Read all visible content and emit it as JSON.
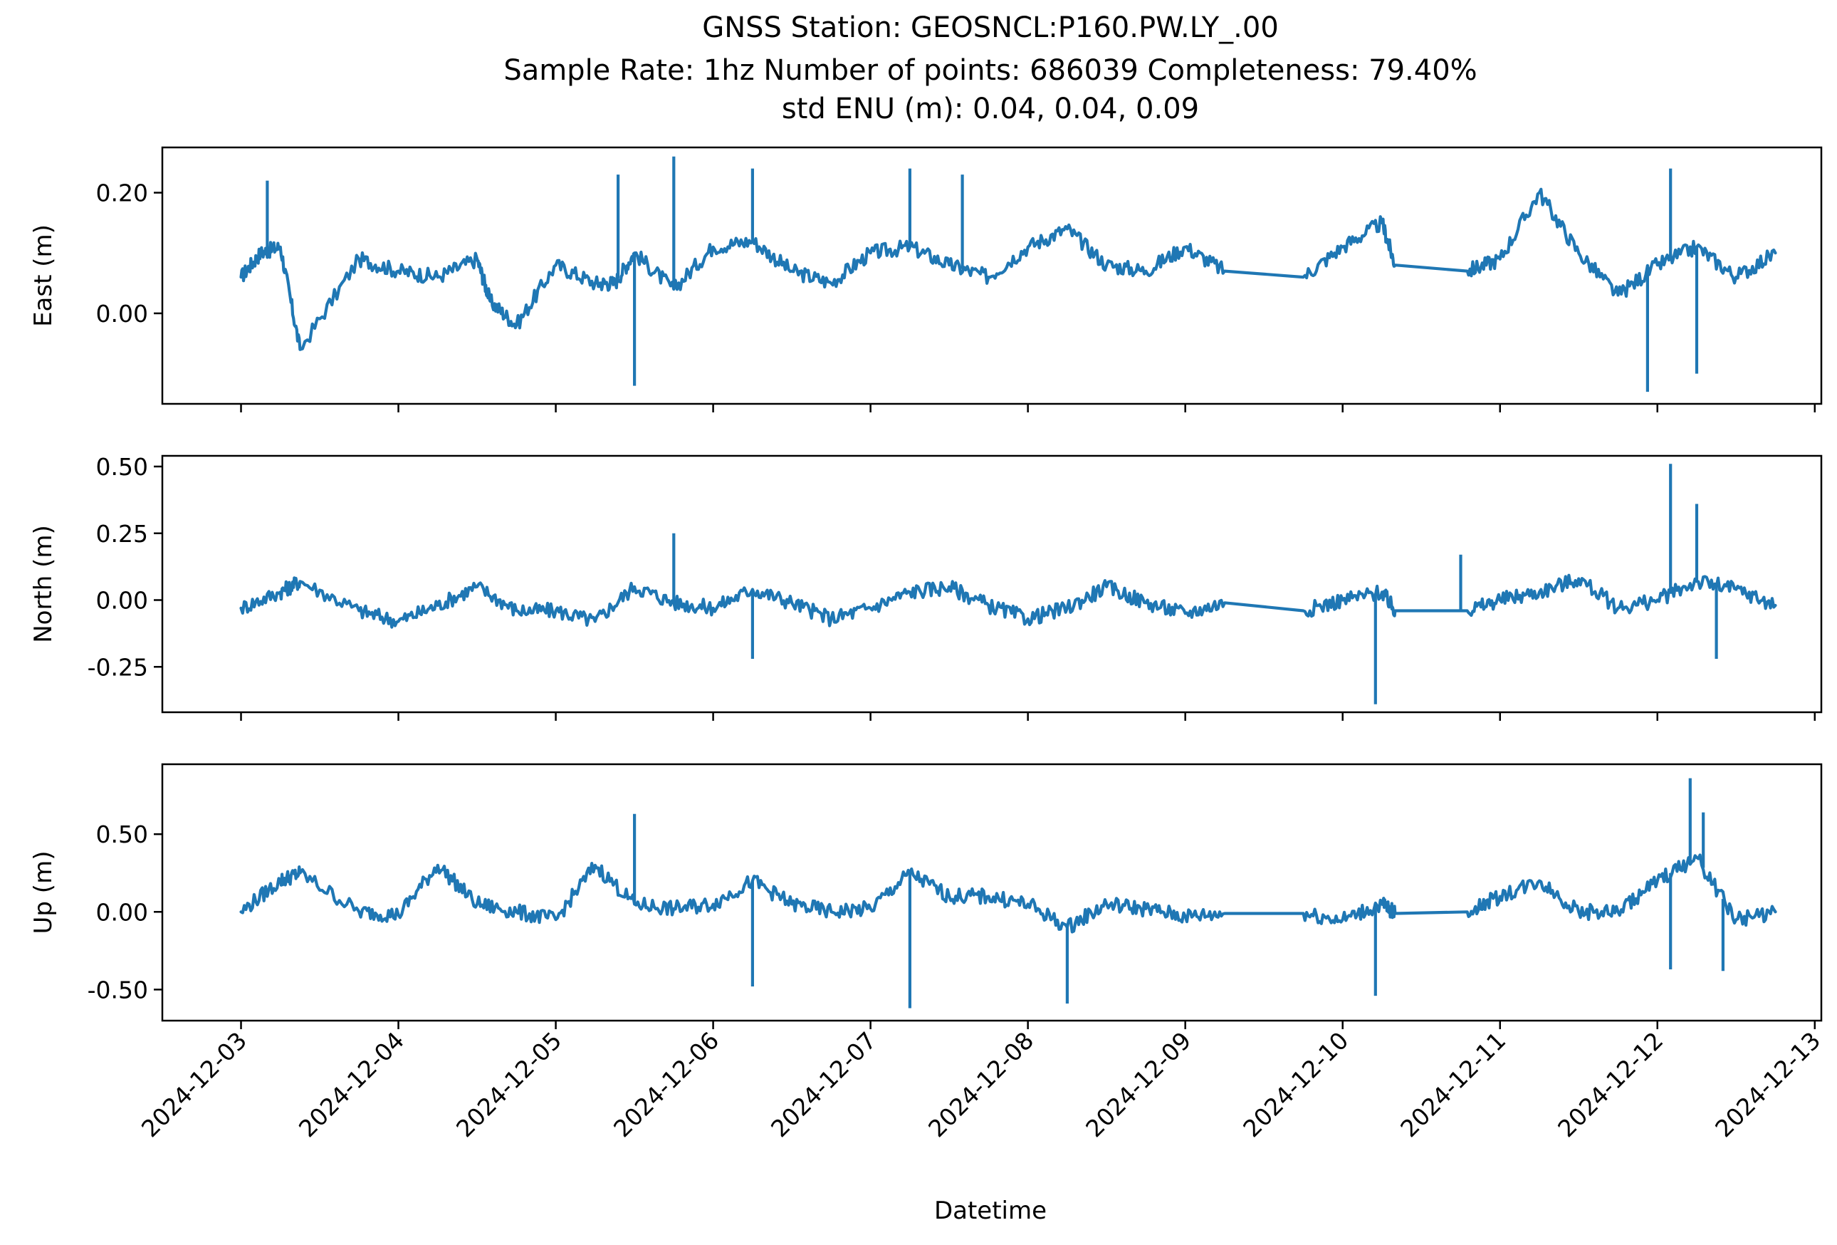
{
  "figure": {
    "title_lines": [
      "GNSS Station: GEOSNCL:P160.PW.LY_.00",
      "Sample Rate: 1hz   Number of points: 686039    Completeness:  79.40%",
      "std ENU (m):  0.04, 0.04, 0.09"
    ],
    "xlabel": "Datetime",
    "series_color": "#1f77b4"
  },
  "chart_data": [
    {
      "type": "line",
      "ylabel": "East (m)",
      "xlim": [
        "2024-12-02T12:00",
        "2024-12-13T01:00"
      ],
      "ylim": [
        -0.15,
        0.275
      ],
      "yticks": [
        0.0,
        0.2
      ],
      "ytick_labels": [
        "0.00",
        "0.20"
      ],
      "xtick_labels_shown": false,
      "x": [
        "2024-12-03T00:00",
        "2024-12-03T03:00",
        "2024-12-03T06:00",
        "2024-12-03T09:00",
        "2024-12-03T18:00",
        "2024-12-04T00:00",
        "2024-12-04T06:00",
        "2024-12-04T12:00",
        "2024-12-04T14:00",
        "2024-12-04T18:00",
        "2024-12-05T00:00",
        "2024-12-05T06:00",
        "2024-12-05T09:00",
        "2024-12-05T12:00",
        "2024-12-05T18:00",
        "2024-12-06T00:00",
        "2024-12-06T06:00",
        "2024-12-06T12:00",
        "2024-12-06T18:00",
        "2024-12-07T00:00",
        "2024-12-07T06:00",
        "2024-12-07T12:00",
        "2024-12-07T18:00",
        "2024-12-08T00:00",
        "2024-12-08T06:00",
        "2024-12-08T12:00",
        "2024-12-08T18:00",
        "2024-12-09T00:00",
        "2024-12-09T06:00",
        "2024-12-09T18:00",
        "2024-12-10T00:00",
        "2024-12-10T06:00",
        "2024-12-10T08:00",
        "2024-12-10T19:00",
        "2024-12-11T00:00",
        "2024-12-11T06:00",
        "2024-12-11T12:00",
        "2024-12-11T18:00",
        "2024-12-12T00:00",
        "2024-12-12T06:00",
        "2024-12-12T12:00",
        "2024-12-12T18:00"
      ],
      "y": [
        0.06,
        0.1,
        0.11,
        -0.06,
        0.09,
        0.07,
        0.06,
        0.09,
        0.02,
        -0.02,
        0.08,
        0.05,
        0.05,
        0.1,
        0.04,
        0.11,
        0.12,
        0.07,
        0.05,
        0.1,
        0.11,
        0.08,
        0.06,
        0.11,
        0.14,
        0.08,
        0.07,
        0.11,
        0.07,
        0.06,
        0.11,
        0.15,
        0.08,
        0.07,
        0.09,
        0.2,
        0.1,
        0.03,
        0.08,
        0.11,
        0.06,
        0.1
      ],
      "spikes": [
        {
          "x": "2024-12-03T04:00",
          "y": 0.22
        },
        {
          "x": "2024-12-05T09:30",
          "y": 0.23
        },
        {
          "x": "2024-12-05T12:00",
          "y": -0.12
        },
        {
          "x": "2024-12-05T18:00",
          "y": 0.26
        },
        {
          "x": "2024-12-06T06:00",
          "y": 0.24
        },
        {
          "x": "2024-12-07T06:00",
          "y": 0.24
        },
        {
          "x": "2024-12-07T14:00",
          "y": 0.23
        },
        {
          "x": "2024-12-11T22:30",
          "y": -0.13
        },
        {
          "x": "2024-12-12T02:00",
          "y": 0.24
        },
        {
          "x": "2024-12-12T06:00",
          "y": -0.1
        }
      ]
    },
    {
      "type": "line",
      "ylabel": "North (m)",
      "xlim": [
        "2024-12-02T12:00",
        "2024-12-13T01:00"
      ],
      "ylim": [
        -0.42,
        0.54
      ],
      "yticks": [
        -0.25,
        0.0,
        0.25,
        0.5
      ],
      "ytick_labels": [
        "-0.25",
        "0.00",
        "0.25",
        "0.50"
      ],
      "xtick_labels_shown": false,
      "x": [
        "2024-12-03T00:00",
        "2024-12-03T06:00",
        "2024-12-03T09:00",
        "2024-12-03T18:00",
        "2024-12-04T00:00",
        "2024-12-04T06:00",
        "2024-12-04T12:00",
        "2024-12-04T18:00",
        "2024-12-05T00:00",
        "2024-12-05T06:00",
        "2024-12-05T12:00",
        "2024-12-05T18:00",
        "2024-12-06T00:00",
        "2024-12-06T06:00",
        "2024-12-06T12:00",
        "2024-12-06T18:00",
        "2024-12-07T00:00",
        "2024-12-07T06:00",
        "2024-12-07T12:00",
        "2024-12-07T18:00",
        "2024-12-08T00:00",
        "2024-12-08T06:00",
        "2024-12-08T12:00",
        "2024-12-08T18:00",
        "2024-12-09T00:00",
        "2024-12-09T06:00",
        "2024-12-09T18:00",
        "2024-12-10T00:00",
        "2024-12-10T06:00",
        "2024-12-10T08:00",
        "2024-12-10T19:00",
        "2024-12-11T00:00",
        "2024-12-11T06:00",
        "2024-12-11T12:00",
        "2024-12-11T18:00",
        "2024-12-12T00:00",
        "2024-12-12T06:00",
        "2024-12-12T12:00",
        "2024-12-12T18:00"
      ],
      "y": [
        -0.03,
        0.03,
        0.07,
        -0.04,
        -0.08,
        -0.02,
        0.05,
        -0.04,
        -0.04,
        -0.08,
        0.05,
        -0.01,
        -0.03,
        0.04,
        -0.01,
        -0.07,
        -0.03,
        0.03,
        0.05,
        -0.02,
        -0.07,
        -0.03,
        0.05,
        -0.01,
        -0.05,
        -0.01,
        -0.04,
        0.0,
        0.03,
        -0.04,
        -0.04,
        0.0,
        0.03,
        0.08,
        -0.03,
        0.0,
        0.07,
        0.04,
        -0.02
      ],
      "spikes": [
        {
          "x": "2024-12-05T18:00",
          "y": 0.25
        },
        {
          "x": "2024-12-06T06:00",
          "y": -0.22
        },
        {
          "x": "2024-12-10T05:00",
          "y": -0.39
        },
        {
          "x": "2024-12-10T18:00",
          "y": 0.17
        },
        {
          "x": "2024-12-12T02:00",
          "y": 0.51
        },
        {
          "x": "2024-12-12T06:00",
          "y": 0.36
        },
        {
          "x": "2024-12-12T09:00",
          "y": -0.22
        }
      ]
    },
    {
      "type": "line",
      "ylabel": "Up (m)",
      "xlim": [
        "2024-12-02T12:00",
        "2024-12-13T01:00"
      ],
      "ylim": [
        -0.7,
        0.95
      ],
      "yticks": [
        -0.5,
        0.0,
        0.5
      ],
      "ytick_labels": [
        "-0.50",
        "0.00",
        "0.50"
      ],
      "xtick_labels": [
        "2024-12-03",
        "2024-12-04",
        "2024-12-05",
        "2024-12-06",
        "2024-12-07",
        "2024-12-08",
        "2024-12-09",
        "2024-12-10",
        "2024-12-11",
        "2024-12-12",
        "2024-12-13"
      ],
      "x": [
        "2024-12-03T00:00",
        "2024-12-03T06:00",
        "2024-12-03T09:00",
        "2024-12-03T18:00",
        "2024-12-04T00:00",
        "2024-12-04T06:00",
        "2024-12-04T12:00",
        "2024-12-04T18:00",
        "2024-12-05T00:00",
        "2024-12-05T06:00",
        "2024-12-05T12:00",
        "2024-12-05T18:00",
        "2024-12-06T00:00",
        "2024-12-06T06:00",
        "2024-12-06T12:00",
        "2024-12-06T18:00",
        "2024-12-07T00:00",
        "2024-12-07T06:00",
        "2024-12-07T12:00",
        "2024-12-07T18:00",
        "2024-12-08T00:00",
        "2024-12-08T06:00",
        "2024-12-08T12:00",
        "2024-12-08T18:00",
        "2024-12-09T00:00",
        "2024-12-09T06:00",
        "2024-12-09T18:00",
        "2024-12-10T00:00",
        "2024-12-10T06:00",
        "2024-12-10T08:00",
        "2024-12-10T19:00",
        "2024-12-11T00:00",
        "2024-12-11T06:00",
        "2024-12-11T12:00",
        "2024-12-11T18:00",
        "2024-12-12T00:00",
        "2024-12-12T06:00",
        "2024-12-12T12:00",
        "2024-12-12T18:00"
      ],
      "y": [
        0.0,
        0.2,
        0.25,
        0.0,
        -0.02,
        0.3,
        0.05,
        0.0,
        -0.05,
        0.3,
        0.05,
        0.02,
        0.05,
        0.2,
        0.05,
        0.0,
        0.02,
        0.25,
        0.1,
        0.1,
        0.05,
        -0.1,
        0.05,
        0.02,
        -0.03,
        -0.01,
        -0.01,
        -0.05,
        0.05,
        -0.01,
        0.0,
        0.1,
        0.2,
        0.0,
        0.0,
        0.2,
        0.35,
        -0.05,
        0.0
      ],
      "spikes": [
        {
          "x": "2024-12-05T12:00",
          "y": 0.63
        },
        {
          "x": "2024-12-06T06:00",
          "y": -0.48
        },
        {
          "x": "2024-12-07T06:00",
          "y": -0.62
        },
        {
          "x": "2024-12-08T06:00",
          "y": -0.59
        },
        {
          "x": "2024-12-10T05:00",
          "y": -0.54
        },
        {
          "x": "2024-12-12T02:00",
          "y": -0.37
        },
        {
          "x": "2024-12-12T05:00",
          "y": 0.86
        },
        {
          "x": "2024-12-12T07:00",
          "y": 0.64
        },
        {
          "x": "2024-12-12T10:00",
          "y": -0.38
        }
      ]
    }
  ]
}
